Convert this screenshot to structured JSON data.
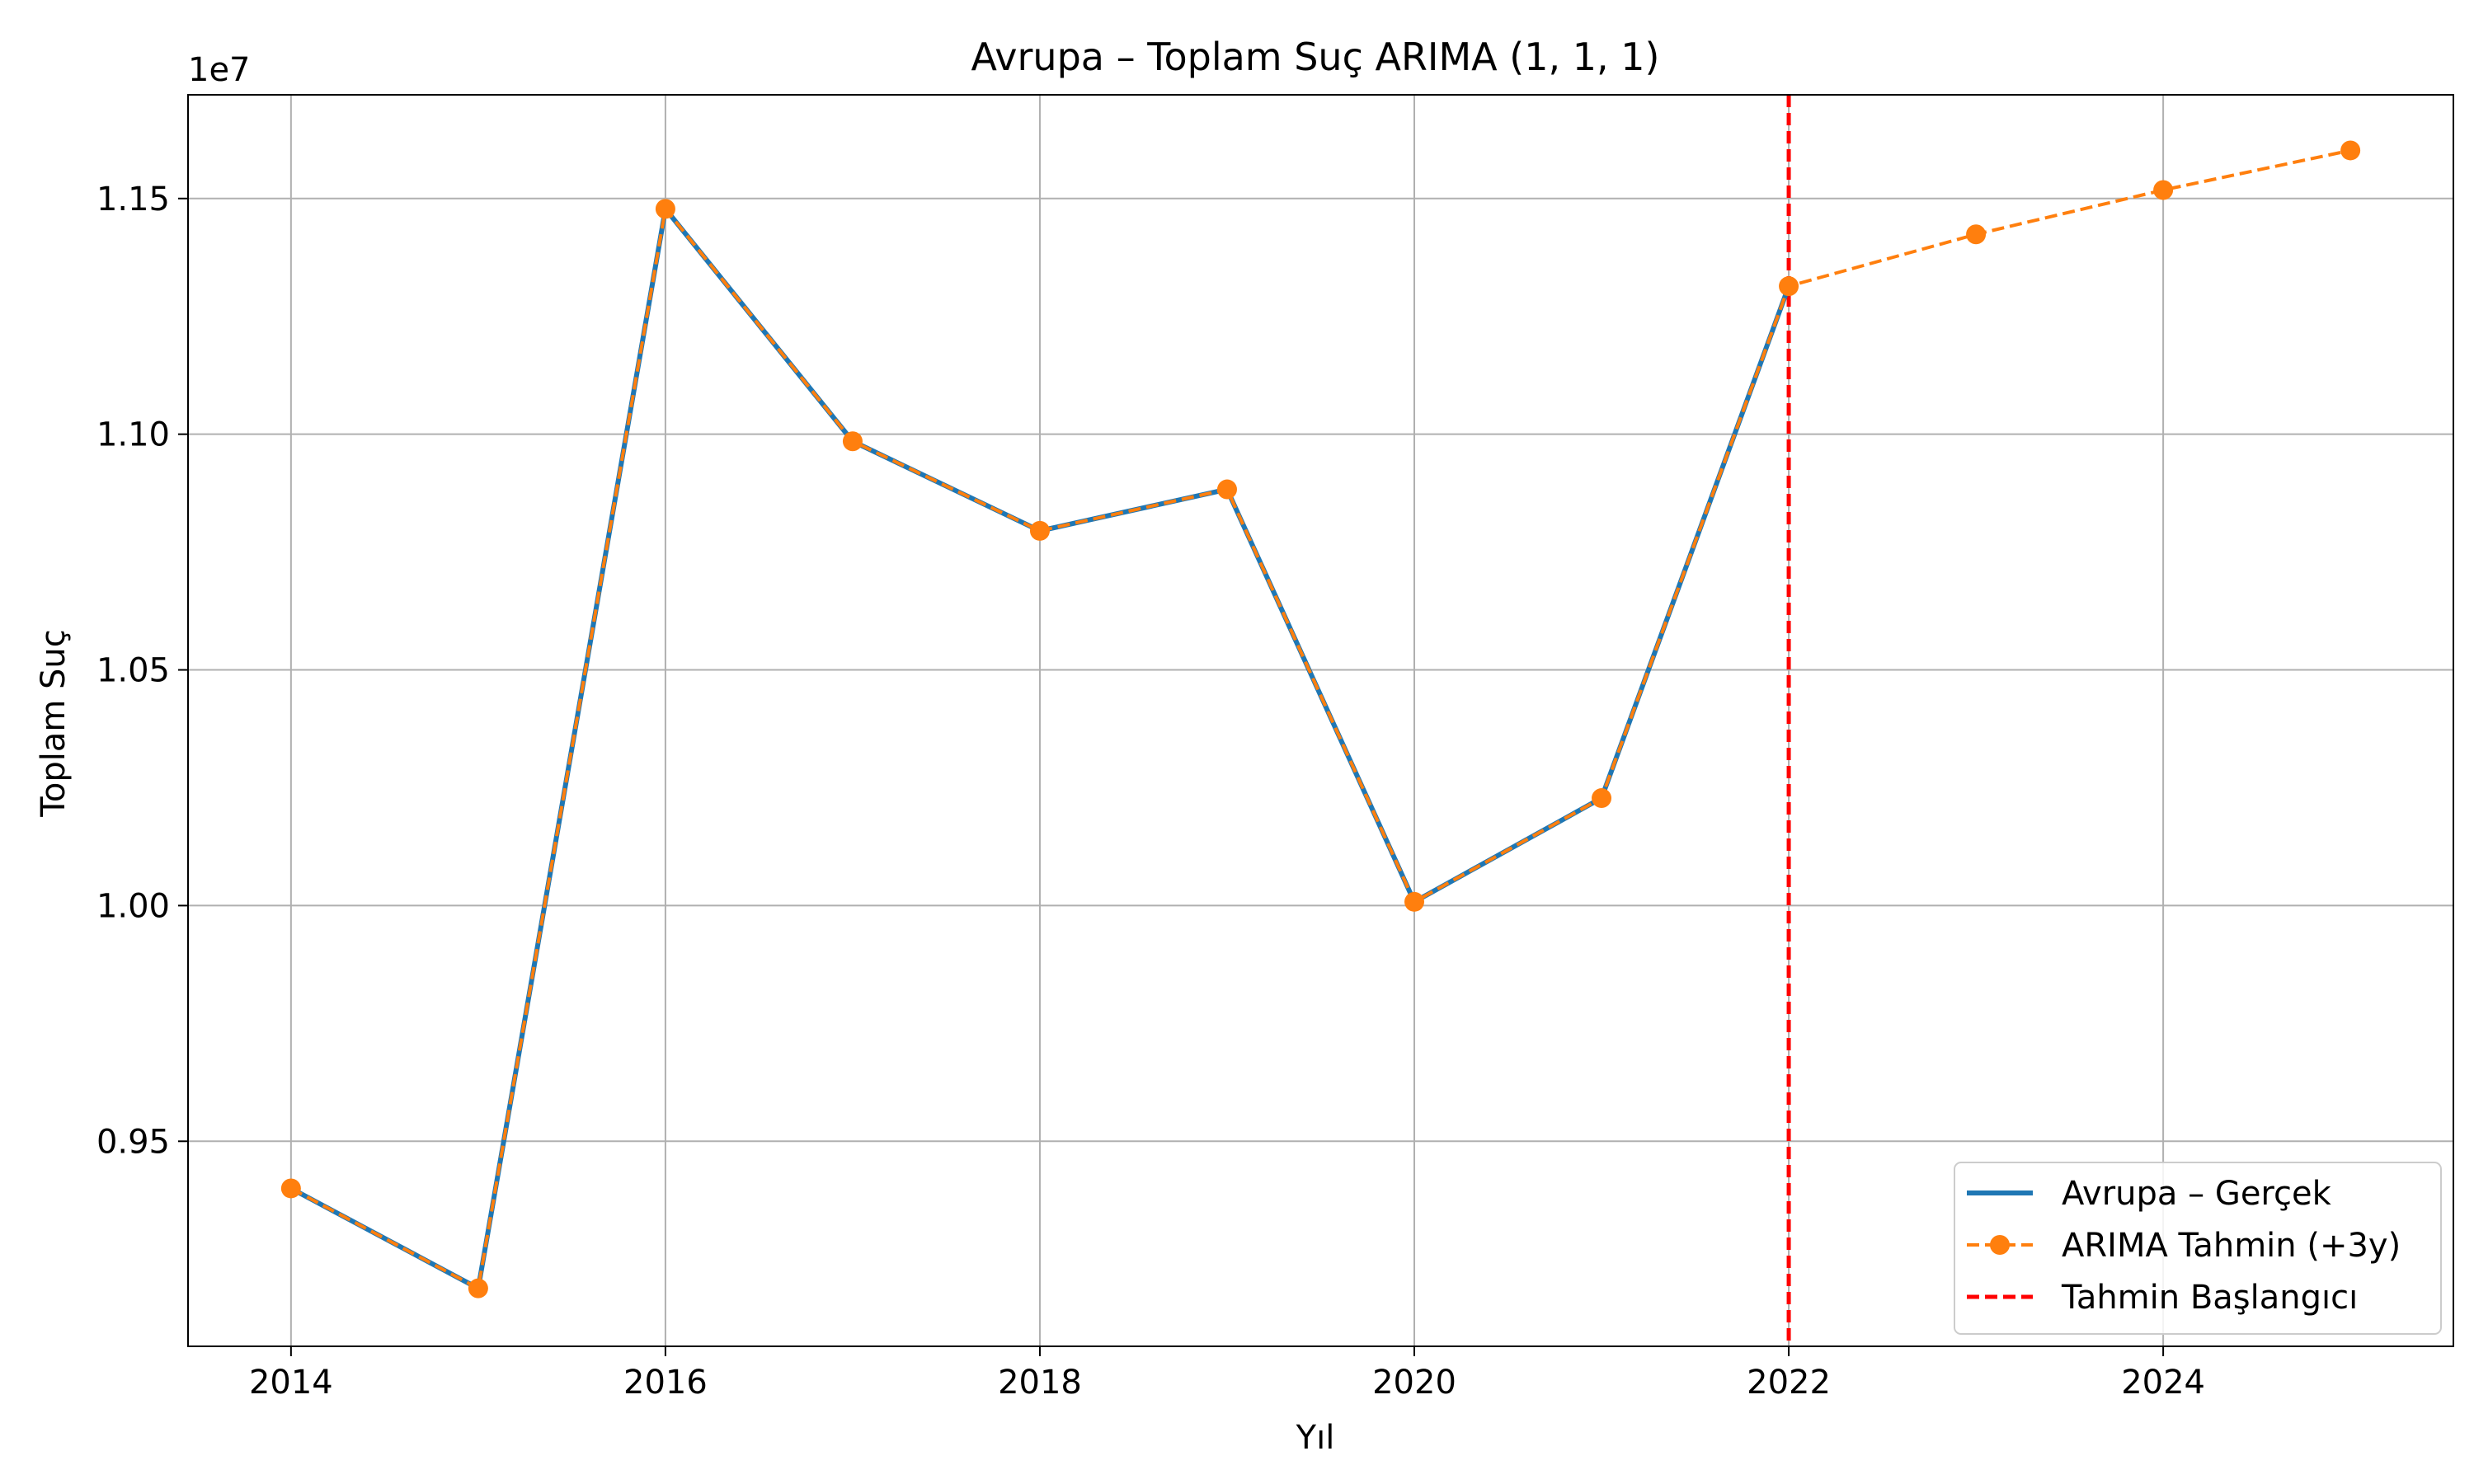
{
  "chart_data": {
    "type": "line",
    "title": "Avrupa – Toplam Suç ARIMA (1, 1, 1)",
    "xlabel": "Yıl",
    "ylabel": "Toplam Suç",
    "y_offset_label": "1e7",
    "xlim": [
      2013.45,
      2025.55
    ],
    "ylim": [
      0.9065,
      1.172
    ],
    "x_ticks": [
      2014,
      2016,
      2018,
      2020,
      2022,
      2024
    ],
    "y_ticks": [
      0.95,
      1.0,
      1.05,
      1.1,
      1.15
    ],
    "y_tick_labels": [
      "0.95",
      "1.00",
      "1.05",
      "1.10",
      "1.15"
    ],
    "grid": true,
    "legend_position": "lower-right",
    "series": [
      {
        "name": "Avrupa – Gerçek",
        "color": "#1f77b4",
        "style": "solid",
        "x": [
          2014,
          2015,
          2016,
          2017,
          2018,
          2019,
          2020,
          2021,
          2022
        ],
        "y": [
          0.94,
          0.9188,
          1.1478,
          1.0985,
          1.0795,
          1.0883,
          1.0008,
          1.0228,
          1.1314
        ]
      },
      {
        "name": "ARIMA Tahmin (+3y)",
        "color": "#ff7f0e",
        "style": "dashed",
        "marker": "circle",
        "x": [
          2014,
          2015,
          2016,
          2017,
          2018,
          2019,
          2020,
          2021,
          2022,
          2023,
          2024,
          2025
        ],
        "y": [
          0.94,
          0.9188,
          1.1478,
          1.0985,
          1.0795,
          1.0883,
          1.0008,
          1.0228,
          1.1314,
          1.1424,
          1.1518,
          1.1602
        ]
      }
    ],
    "vline": {
      "name": "Tahmin Başlangıcı",
      "x": 2022,
      "color": "#ff0000",
      "style": "dashed"
    }
  }
}
